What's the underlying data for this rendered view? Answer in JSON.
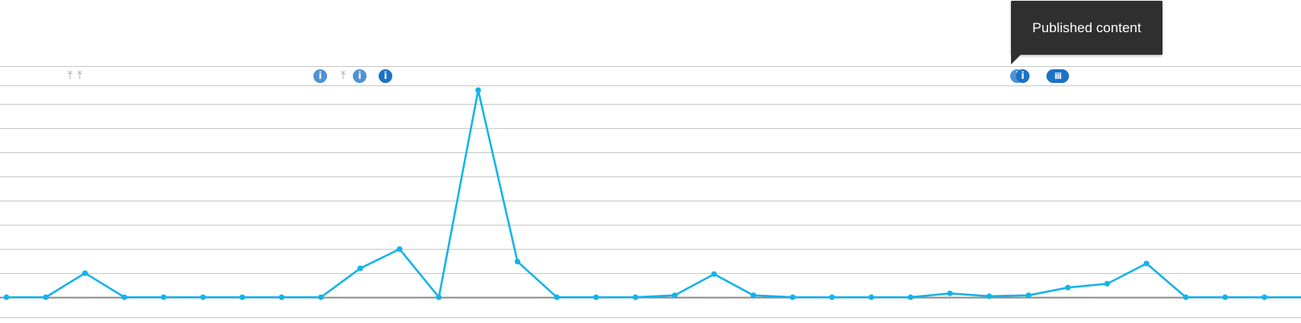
{
  "tooltip": {
    "text": "Published content"
  },
  "annotations": {
    "info_glyph": "i",
    "arrow_glyph": "⤒",
    "pill_glyph": "iii",
    "items": [
      {
        "type": "arrow",
        "icon": "publish-arrow-icon"
      },
      {
        "type": "arrow",
        "icon": "publish-arrow-icon"
      },
      {
        "type": "info",
        "icon": "info-icon"
      },
      {
        "type": "arrow",
        "icon": "publish-arrow-icon"
      },
      {
        "type": "info",
        "icon": "info-icon"
      },
      {
        "type": "info",
        "icon": "info-icon"
      },
      {
        "type": "info",
        "icon": "info-icon"
      },
      {
        "type": "info",
        "icon": "info-icon"
      },
      {
        "type": "pill",
        "icon": "info-cluster-icon"
      }
    ]
  },
  "chart_data": {
    "type": "line",
    "title": "",
    "xlabel": "",
    "ylabel": "",
    "series": [
      {
        "values": [
          0,
          0,
          2.5,
          0,
          0,
          0,
          0,
          0,
          0,
          3.0,
          5.0,
          0,
          21.5,
          3.7,
          0,
          0,
          0,
          0.2,
          2.4,
          0.2,
          0,
          0,
          0,
          0,
          0.4,
          0.1,
          0.2,
          1.0,
          1.4,
          3.5,
          0,
          0,
          0,
          0
        ]
      }
    ],
    "ylim": [
      0,
      24
    ],
    "grid": true,
    "legend": "none",
    "line_color": "#12b3eb",
    "grid_color": "#c8c8c8",
    "baseline_color": "#8a8a8a"
  }
}
